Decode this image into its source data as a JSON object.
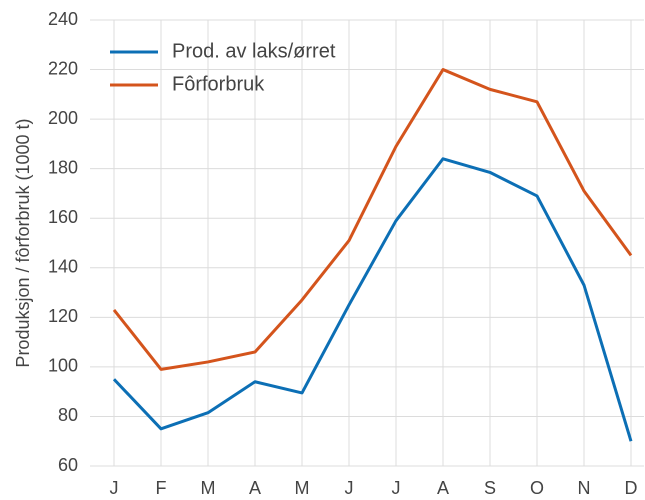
{
  "chart_data": {
    "type": "line",
    "y_label": "Produksjon / fôrforbruk (1000 t)",
    "categories": [
      "J",
      "F",
      "M",
      "A",
      "M",
      "J",
      "J",
      "A",
      "S",
      "O",
      "N",
      "D"
    ],
    "series": [
      {
        "name": "Prod. av laks/ørret",
        "color": "#0c6fb5",
        "values": [
          95,
          75,
          81.5,
          94,
          89.5,
          125,
          159,
          184,
          178.5,
          169,
          133,
          70
        ]
      },
      {
        "name": "Fôrforbruk",
        "color": "#d4541c",
        "values": [
          123,
          99,
          102,
          106,
          127,
          151,
          189,
          220,
          212,
          207,
          171,
          145
        ]
      }
    ],
    "ylim": [
      60,
      240
    ],
    "yticks": [
      60,
      80,
      100,
      120,
      140,
      160,
      180,
      200,
      220,
      240
    ],
    "grid": true,
    "legend": "upper-left"
  }
}
